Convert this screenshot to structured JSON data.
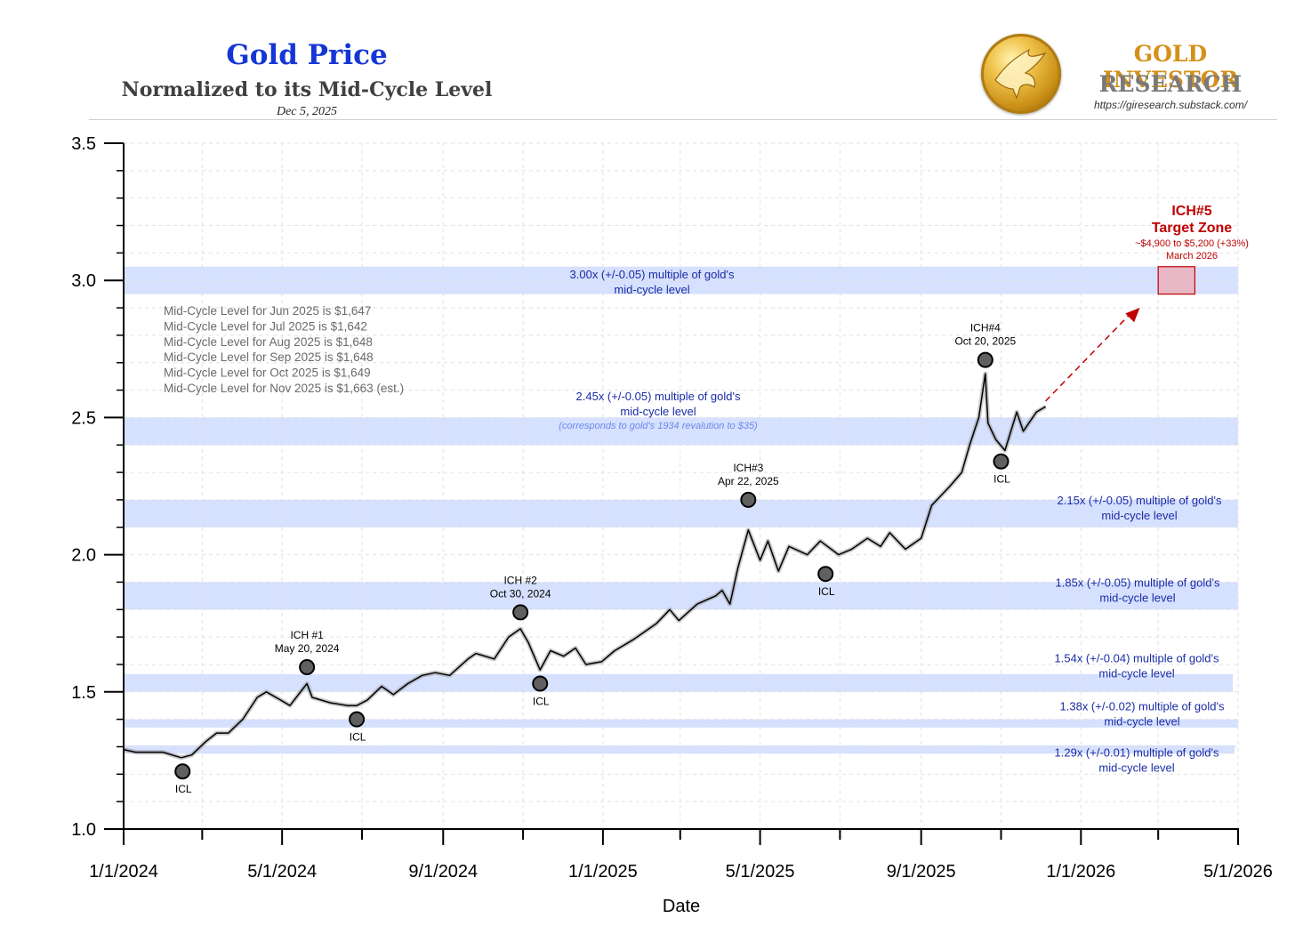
{
  "header": {
    "title": "Gold Price",
    "subtitle": "Normalized to its Mid-Cycle Level",
    "date": "Dec 5, 2025"
  },
  "brand": {
    "line1": "GOLD INVESTOR",
    "line2": "RESEARCH",
    "url": "https://giresearch.substack.com/",
    "icon": "eagle-coin-icon"
  },
  "colors": {
    "title": "#1536d6",
    "band": "#d6e0ff",
    "band_text": "#1a2ca6",
    "line": "#000000",
    "range": "#9a9a9a",
    "target": "#c00000",
    "target_fill": "#e8b8c6",
    "marker": "#606060"
  },
  "chart_data": {
    "type": "line",
    "xlabel": "Date",
    "ylabel": "",
    "ylim": [
      1.0,
      3.5
    ],
    "xlim": [
      "2024-01-01",
      "2026-05-01"
    ],
    "x_ticks": [
      "1/1/2024",
      "5/1/2024",
      "9/1/2024",
      "1/1/2025",
      "5/1/2025",
      "9/1/2025",
      "1/1/2026",
      "5/1/2026"
    ],
    "x_tick_dates": [
      "2024-01-01",
      "2024-05-01",
      "2024-09-01",
      "2025-01-01",
      "2025-05-01",
      "2025-09-01",
      "2026-01-01",
      "2026-05-01"
    ],
    "y_ticks": [
      "1.0",
      "1.5",
      "2.0",
      "2.5",
      "3.0",
      "3.5"
    ],
    "grid": true,
    "series": [
      {
        "points": [
          [
            "2024-01-01",
            1.29
          ],
          [
            "2024-01-10",
            1.28
          ],
          [
            "2024-01-20",
            1.28
          ],
          [
            "2024-01-31",
            1.28
          ],
          [
            "2024-02-14",
            1.26
          ],
          [
            "2024-02-22",
            1.27
          ],
          [
            "2024-03-04",
            1.32
          ],
          [
            "2024-03-12",
            1.35
          ],
          [
            "2024-03-21",
            1.35
          ],
          [
            "2024-04-01",
            1.4
          ],
          [
            "2024-04-12",
            1.48
          ],
          [
            "2024-04-19",
            1.5
          ],
          [
            "2024-04-30",
            1.47
          ],
          [
            "2024-05-07",
            1.45
          ],
          [
            "2024-05-20",
            1.53
          ],
          [
            "2024-05-24",
            1.48
          ],
          [
            "2024-06-07",
            1.46
          ],
          [
            "2024-06-20",
            1.45
          ],
          [
            "2024-06-27",
            1.45
          ],
          [
            "2024-07-05",
            1.47
          ],
          [
            "2024-07-16",
            1.52
          ],
          [
            "2024-07-25",
            1.49
          ],
          [
            "2024-08-05",
            1.53
          ],
          [
            "2024-08-16",
            1.56
          ],
          [
            "2024-08-26",
            1.57
          ],
          [
            "2024-09-06",
            1.56
          ],
          [
            "2024-09-20",
            1.62
          ],
          [
            "2024-09-26",
            1.64
          ],
          [
            "2024-10-10",
            1.62
          ],
          [
            "2024-10-21",
            1.7
          ],
          [
            "2024-10-30",
            1.73
          ],
          [
            "2024-11-05",
            1.68
          ],
          [
            "2024-11-14",
            1.58
          ],
          [
            "2024-11-22",
            1.65
          ],
          [
            "2024-12-02",
            1.63
          ],
          [
            "2024-12-11",
            1.66
          ],
          [
            "2024-12-19",
            1.6
          ],
          [
            "2024-12-31",
            1.61
          ],
          [
            "2025-01-10",
            1.65
          ],
          [
            "2025-01-24",
            1.69
          ],
          [
            "2025-02-11",
            1.75
          ],
          [
            "2025-02-21",
            1.8
          ],
          [
            "2025-02-28",
            1.76
          ],
          [
            "2025-03-14",
            1.82
          ],
          [
            "2025-03-28",
            1.85
          ],
          [
            "2025-04-02",
            1.87
          ],
          [
            "2025-04-08",
            1.82
          ],
          [
            "2025-04-14",
            1.95
          ],
          [
            "2025-04-22",
            2.09
          ],
          [
            "2025-05-01",
            1.98
          ],
          [
            "2025-05-07",
            2.05
          ],
          [
            "2025-05-15",
            1.94
          ],
          [
            "2025-05-23",
            2.03
          ],
          [
            "2025-06-06",
            2.0
          ],
          [
            "2025-06-16",
            2.05
          ],
          [
            "2025-06-30",
            2.0
          ],
          [
            "2025-07-10",
            2.02
          ],
          [
            "2025-07-22",
            2.06
          ],
          [
            "2025-08-01",
            2.03
          ],
          [
            "2025-08-08",
            2.08
          ],
          [
            "2025-08-20",
            2.02
          ],
          [
            "2025-09-01",
            2.06
          ],
          [
            "2025-09-09",
            2.18
          ],
          [
            "2025-09-23",
            2.25
          ],
          [
            "2025-10-02",
            2.3
          ],
          [
            "2025-10-08",
            2.4
          ],
          [
            "2025-10-15",
            2.5
          ],
          [
            "2025-10-20",
            2.66
          ],
          [
            "2025-10-22",
            2.48
          ],
          [
            "2025-10-28",
            2.42
          ],
          [
            "2025-11-04",
            2.38
          ],
          [
            "2025-11-13",
            2.52
          ],
          [
            "2025-11-18",
            2.45
          ],
          [
            "2025-11-28",
            2.52
          ],
          [
            "2025-12-05",
            2.54
          ]
        ]
      }
    ],
    "bands": [
      {
        "center": 3.0,
        "text1": "3.00x (+/-0.05) multiple of gold's",
        "text2": "mid-cycle level",
        "note": ""
      },
      {
        "center": 2.45,
        "text1": "2.45x (+/-0.05) multiple of gold's",
        "text2": "mid-cycle level",
        "note": "(corresponds to gold's 1934 revalution to $35)"
      },
      {
        "center": 2.15,
        "text1": "2.15x (+/-0.05) multiple of gold's",
        "text2": "mid-cycle level",
        "note": ""
      },
      {
        "center": 1.85,
        "text1": "1.85x (+/-0.05) multiple of gold's",
        "text2": "mid-cycle level",
        "note": ""
      },
      {
        "center": 1.54,
        "text1": "1.54x (+/-0.04) multiple of gold's",
        "text2": "mid-cycle level",
        "note": ""
      },
      {
        "center": 1.38,
        "text1": "1.38x (+/-0.02) multiple of gold's",
        "text2": "mid-cycle level",
        "note": ""
      },
      {
        "center": 1.29,
        "text1": "1.29x (+/-0.01) multiple of gold's",
        "text2": "mid-cycle level",
        "note": ""
      }
    ],
    "markers": [
      {
        "date": "2024-02-15",
        "value": 1.21,
        "label1": "ICL",
        "label2": "",
        "label_pos": "below"
      },
      {
        "date": "2024-05-20",
        "value": 1.59,
        "label1": "ICH #1",
        "label2": "May 20, 2024",
        "label_pos": "above"
      },
      {
        "date": "2024-06-27",
        "value": 1.4,
        "label1": "ICL",
        "label2": "",
        "label_pos": "below"
      },
      {
        "date": "2024-10-30",
        "value": 1.79,
        "label1": "ICH #2",
        "label2": "Oct 30, 2024",
        "label_pos": "above"
      },
      {
        "date": "2024-11-14",
        "value": 1.53,
        "label1": "ICL",
        "label2": "",
        "label_pos": "below"
      },
      {
        "date": "2025-04-22",
        "value": 2.2,
        "label1": "ICH#3",
        "label2": "Apr 22, 2025",
        "label_pos": "above"
      },
      {
        "date": "2025-06-20",
        "value": 1.93,
        "label1": "ICL",
        "label2": "",
        "label_pos": "below"
      },
      {
        "date": "2025-10-20",
        "value": 2.71,
        "label1": "ICH#4",
        "label2": "Oct 20, 2025",
        "label_pos": "above"
      },
      {
        "date": "2025-11-01",
        "value": 2.34,
        "label1": "ICL",
        "label2": "",
        "label_pos": "below"
      }
    ],
    "mid_cycle_notes": [
      "Mid-Cycle Level for Jun 2025 is $1,647",
      "Mid-Cycle Level for Jul 2025 is $1,642",
      "Mid-Cycle Level for Aug 2025 is $1,648",
      "Mid-Cycle Level for Sep 2025 is $1,648",
      "Mid-Cycle Level for Oct 2025 is $1,649",
      "Mid-Cycle Level for Nov 2025 is $1,663 (est.)"
    ],
    "target_zone": {
      "title1": "ICH#5",
      "title2": "Target Zone",
      "range_text": "~$4,900 to $5,200 (+33%)",
      "date_text": "March 2026",
      "x_start": "2026-03-01",
      "x_end": "2026-03-29",
      "y_low": 2.95,
      "y_high": 3.05
    },
    "projection_arrow": {
      "from": [
        "2025-12-05",
        2.56
      ],
      "to": [
        "2026-02-15",
        2.9
      ]
    }
  }
}
